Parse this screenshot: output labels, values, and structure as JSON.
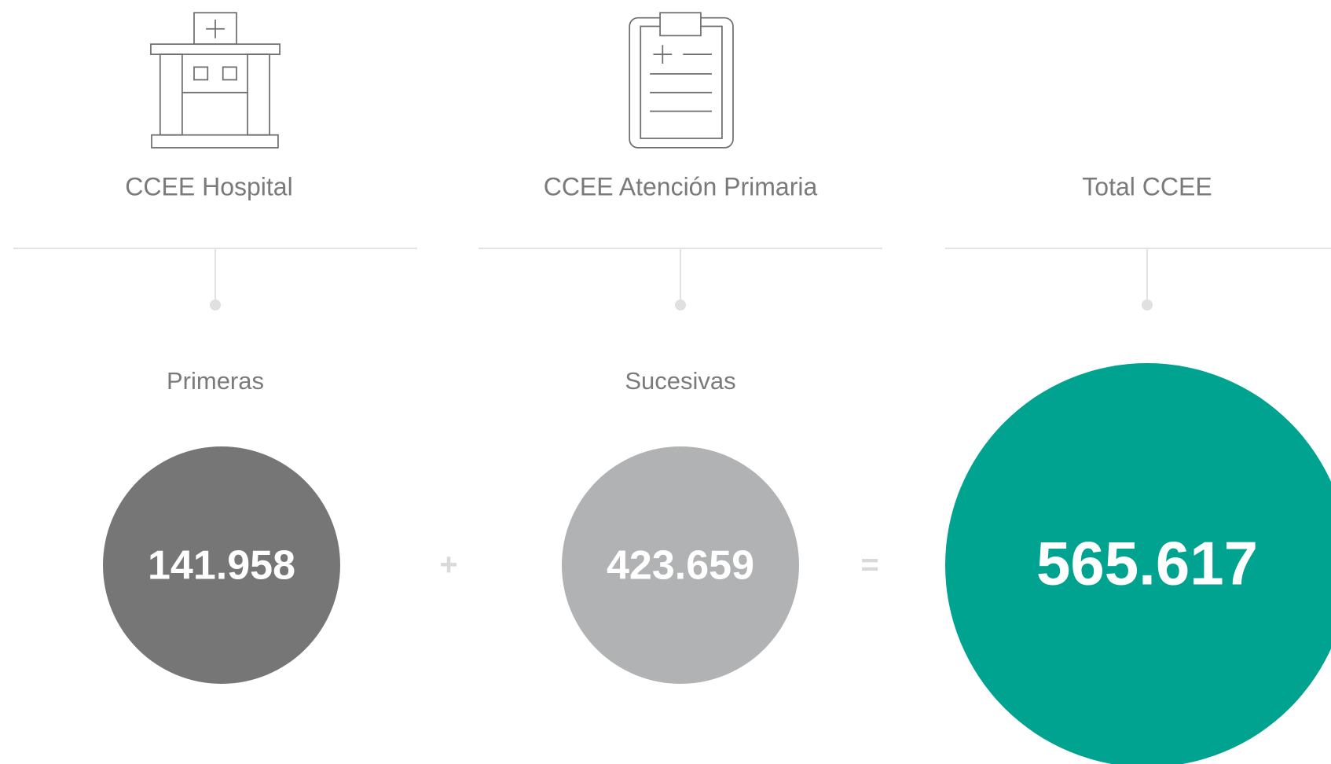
{
  "columns": [
    {
      "heading": "CCEE Hospital",
      "sublabel": "Primeras",
      "value": "141.958"
    },
    {
      "heading": "CCEE Atención Primaria",
      "sublabel": "Sucesivas",
      "value": "423.659"
    },
    {
      "heading": "Total CCEE",
      "value": "565.617"
    }
  ],
  "operators": [
    "+",
    "="
  ]
}
